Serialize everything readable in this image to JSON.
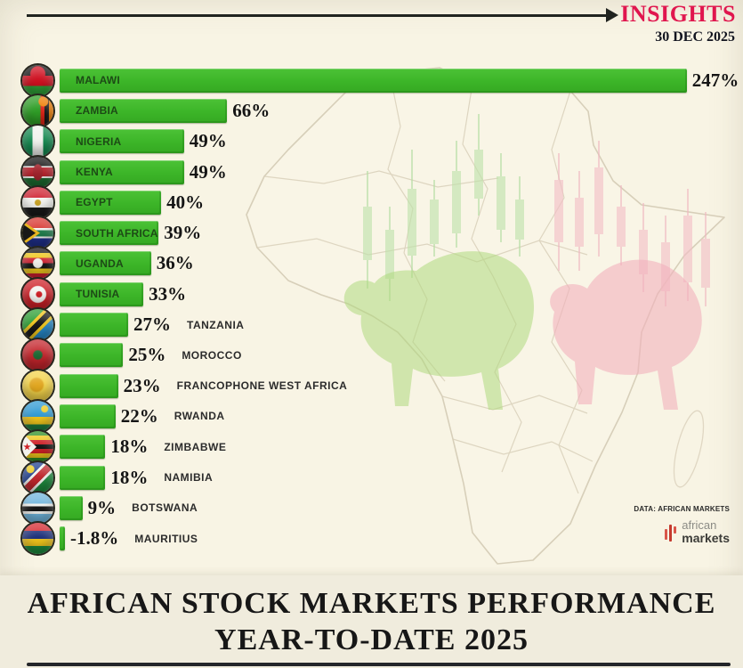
{
  "header": {
    "brand": "INSIGHTS",
    "date": "30 DEC 2025"
  },
  "chart_data": {
    "type": "bar",
    "orientation": "horizontal",
    "unit": "%",
    "title": "African Stock Markets Performance Year-to-Date 2025",
    "grid": false,
    "legend": false,
    "categories": [
      "MALAWI",
      "ZAMBIA",
      "NIGERIA",
      "KENYA",
      "EGYPT",
      "SOUTH AFRICA",
      "UGANDA",
      "TUNISIA",
      "TANZANIA",
      "MOROCCO",
      "FRANCOPHONE WEST AFRICA",
      "RWANDA",
      "ZIMBABWE",
      "NAMIBIA",
      "BOTSWANA",
      "MAURITIUS"
    ],
    "values": [
      247,
      66,
      49,
      49,
      40,
      39,
      36,
      33,
      27,
      25,
      23,
      22,
      18,
      18,
      9,
      -1.8
    ],
    "value_labels": [
      "247%",
      "66%",
      "49%",
      "49%",
      "40%",
      "39%",
      "36%",
      "33%",
      "27%",
      "25%",
      "23%",
      "22%",
      "18%",
      "18%",
      "9%",
      "-1.8%"
    ],
    "label_position": [
      "inside",
      "inside",
      "inside",
      "inside",
      "inside",
      "inside",
      "inside",
      "inside",
      "outside",
      "outside",
      "outside",
      "outside",
      "outside",
      "outside",
      "outside",
      "outside"
    ],
    "flags": [
      "malawi",
      "zambia",
      "nigeria",
      "kenya",
      "egypt",
      "south-africa",
      "uganda",
      "tunisia",
      "tanzania",
      "morocco",
      "francophone-west-africa",
      "rwanda",
      "zimbabwe",
      "namibia",
      "botswana",
      "mauritius"
    ],
    "bar_color": "#3cb528"
  },
  "background_icons": [
    "africa-map",
    "green-candlesticks",
    "red-candlesticks",
    "bull",
    "bear"
  ],
  "footer": {
    "source": "DATA: AFRICAN MARKETS",
    "logo": {
      "line1": "african",
      "line2": "markets"
    }
  },
  "title": {
    "line1": "AFRICAN STOCK MARKETS PERFORMANCE",
    "line2": "YEAR-TO-DATE 2025"
  },
  "colors": {
    "background": "#f8f4e4",
    "panel": "#f0ecdd",
    "bar_green": "#3cb528",
    "accent_red": "#e0164e",
    "ink": "#1c1c1c"
  }
}
